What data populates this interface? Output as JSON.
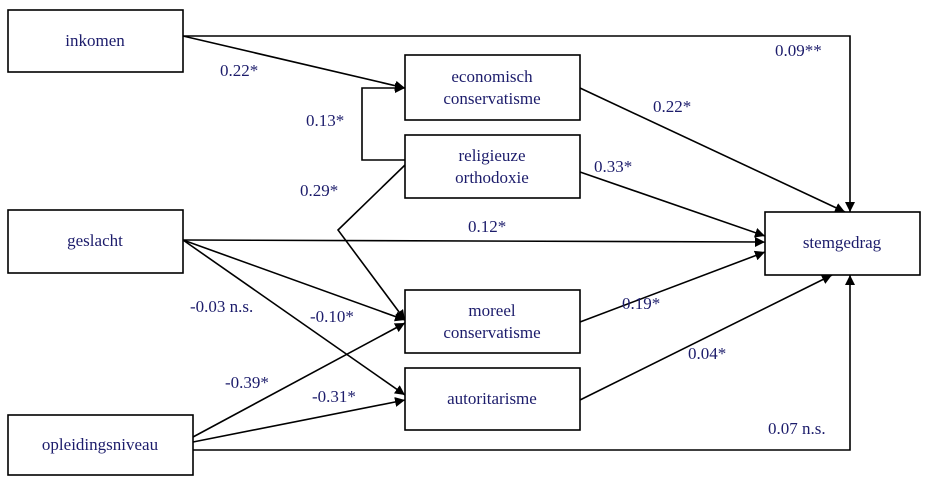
{
  "nodes": [
    {
      "label": [
        "inkomen"
      ]
    },
    {
      "label": [
        "geslacht"
      ]
    },
    {
      "label": [
        "opleidingsniveau"
      ]
    },
    {
      "label": [
        "economisch",
        "conservatisme"
      ]
    },
    {
      "label": [
        "religieuze",
        "orthodoxie"
      ]
    },
    {
      "label": [
        "moreel",
        "conservatisme"
      ]
    },
    {
      "label": [
        "autoritarisme"
      ]
    },
    {
      "label": [
        "stemgedrag"
      ]
    }
  ],
  "edges": [
    {
      "label": "0.09**"
    },
    {
      "label": "0.22*"
    },
    {
      "label": "0.13*"
    },
    {
      "label": "0.29*"
    },
    {
      "label": "0.22*"
    },
    {
      "label": "0.33*"
    },
    {
      "label": "0.12*"
    },
    {
      "label": "-0.10*"
    },
    {
      "label": "-0.03 n.s."
    },
    {
      "label": "-0.39*"
    },
    {
      "label": "-0.31*"
    },
    {
      "label": "0.07 n.s."
    },
    {
      "label": "0.19*"
    },
    {
      "label": "0.04*"
    }
  ]
}
